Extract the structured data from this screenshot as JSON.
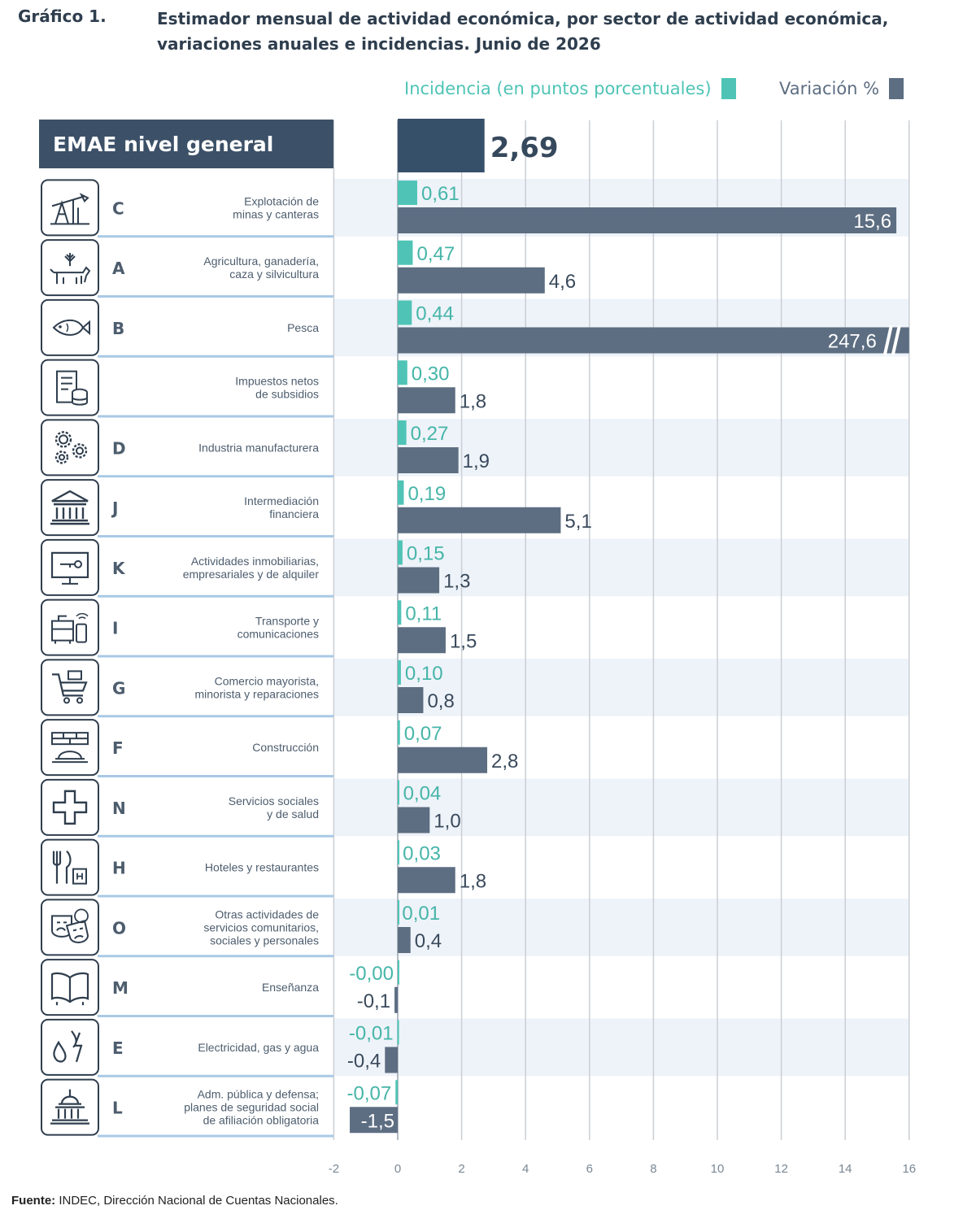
{
  "figure": {
    "label": "Gráfico 1.",
    "title": "Estimador mensual de actividad económica, por sector de actividad económica, variaciones anuales e incidencias. Junio de 2026",
    "source_label": "Fuente:",
    "source_text": "INDEC, Dirección Nacional de Cuentas Nacionales."
  },
  "legend": {
    "incidence_label": "Incidencia (en puntos porcentuales)",
    "variation_label": "Variación %"
  },
  "colors": {
    "incidence": "#4fc4b6",
    "variation": "#5d6e82",
    "total": "#37506a",
    "header_bg": "#3c5168",
    "grid": "#c9cfd5",
    "separator": "#a9c9e6",
    "icon_stroke": "#2f3e4e"
  },
  "chart_data": {
    "type": "bar",
    "orientation": "horizontal",
    "xlim": [
      -2,
      16
    ],
    "x_ticks": [
      -2,
      0,
      2,
      4,
      6,
      8,
      10,
      12,
      14,
      16
    ],
    "legend_placement": "top-right",
    "total": {
      "name": "EMAE nivel general",
      "value": 2.69,
      "value_label": "2,69"
    },
    "categories": [
      {
        "code": "C",
        "name": "Explotación de\nminas y canteras",
        "icon": "mining-pump-icon",
        "incidence": 0.61,
        "incidence_label": "0,61",
        "variation": 15.6,
        "variation_label": "15,6"
      },
      {
        "code": "A",
        "name": "Agricultura, ganadería,\ncaza y silvicultura",
        "icon": "cow-plant-icon",
        "incidence": 0.47,
        "incidence_label": "0,47",
        "variation": 4.6,
        "variation_label": "4,6"
      },
      {
        "code": "B",
        "name": "Pesca",
        "icon": "fish-icon",
        "incidence": 0.44,
        "incidence_label": "0,44",
        "variation": 247.6,
        "variation_label": "247,6",
        "axis_break": true
      },
      {
        "code": "",
        "name": "Impuestos netos\nde subsidios",
        "icon": "tax-document-coins-icon",
        "incidence": 0.3,
        "incidence_label": "0,30",
        "variation": 1.8,
        "variation_label": "1,8"
      },
      {
        "code": "D",
        "name": "Industria manufacturera",
        "icon": "gears-icon",
        "incidence": 0.27,
        "incidence_label": "0,27",
        "variation": 1.9,
        "variation_label": "1,9"
      },
      {
        "code": "J",
        "name": "Intermediación\nfinanciera",
        "icon": "bank-building-icon",
        "incidence": 0.19,
        "incidence_label": "0,19",
        "variation": 5.1,
        "variation_label": "5,1"
      },
      {
        "code": "K",
        "name": "Actividades inmobiliarias,\nempresariales y de alquiler",
        "icon": "monitor-key-icon",
        "incidence": 0.15,
        "incidence_label": "0,15",
        "variation": 1.3,
        "variation_label": "1,3"
      },
      {
        "code": "I",
        "name": "Transporte y\ncomunicaciones",
        "icon": "bus-phone-icon",
        "incidence": 0.11,
        "incidence_label": "0,11",
        "variation": 1.5,
        "variation_label": "1,5"
      },
      {
        "code": "G",
        "name": "Comercio mayorista,\nminorista y reparaciones",
        "icon": "shopping-cart-icon",
        "incidence": 0.1,
        "incidence_label": "0,10",
        "variation": 0.8,
        "variation_label": "0,8"
      },
      {
        "code": "F",
        "name": "Construcción",
        "icon": "bricks-helmet-icon",
        "incidence": 0.07,
        "incidence_label": "0,07",
        "variation": 2.8,
        "variation_label": "2,8"
      },
      {
        "code": "N",
        "name": "Servicios sociales\ny de salud",
        "icon": "health-cross-icon",
        "incidence": 0.04,
        "incidence_label": "0,04",
        "variation": 1.0,
        "variation_label": "1,0"
      },
      {
        "code": "H",
        "name": "Hoteles y restaurantes",
        "icon": "cutlery-hotel-icon",
        "incidence": 0.03,
        "incidence_label": "0,03",
        "variation": 1.8,
        "variation_label": "1,8"
      },
      {
        "code": "O",
        "name": "Otras actividades de\nservicios comunitarios,\nsociales y personales",
        "icon": "theater-masks-icon",
        "incidence": 0.01,
        "incidence_label": "0,01",
        "variation": 0.4,
        "variation_label": "0,4"
      },
      {
        "code": "M",
        "name": "Enseñanza",
        "icon": "open-book-icon",
        "incidence": -0.001,
        "incidence_label": "-0,00",
        "variation": -0.1,
        "variation_label": "-0,1"
      },
      {
        "code": "E",
        "name": "Electricidad, gas y agua",
        "icon": "water-fire-bolt-icon",
        "incidence": -0.01,
        "incidence_label": "-0,01",
        "variation": -0.4,
        "variation_label": "-0,4"
      },
      {
        "code": "L",
        "name": "Adm. pública y defensa;\nplanes de seguridad social\nde afiliación obligatoria",
        "icon": "capitol-building-icon",
        "incidence": -0.07,
        "incidence_label": "-0,07",
        "variation": -1.5,
        "variation_label": "-1,5"
      }
    ]
  }
}
